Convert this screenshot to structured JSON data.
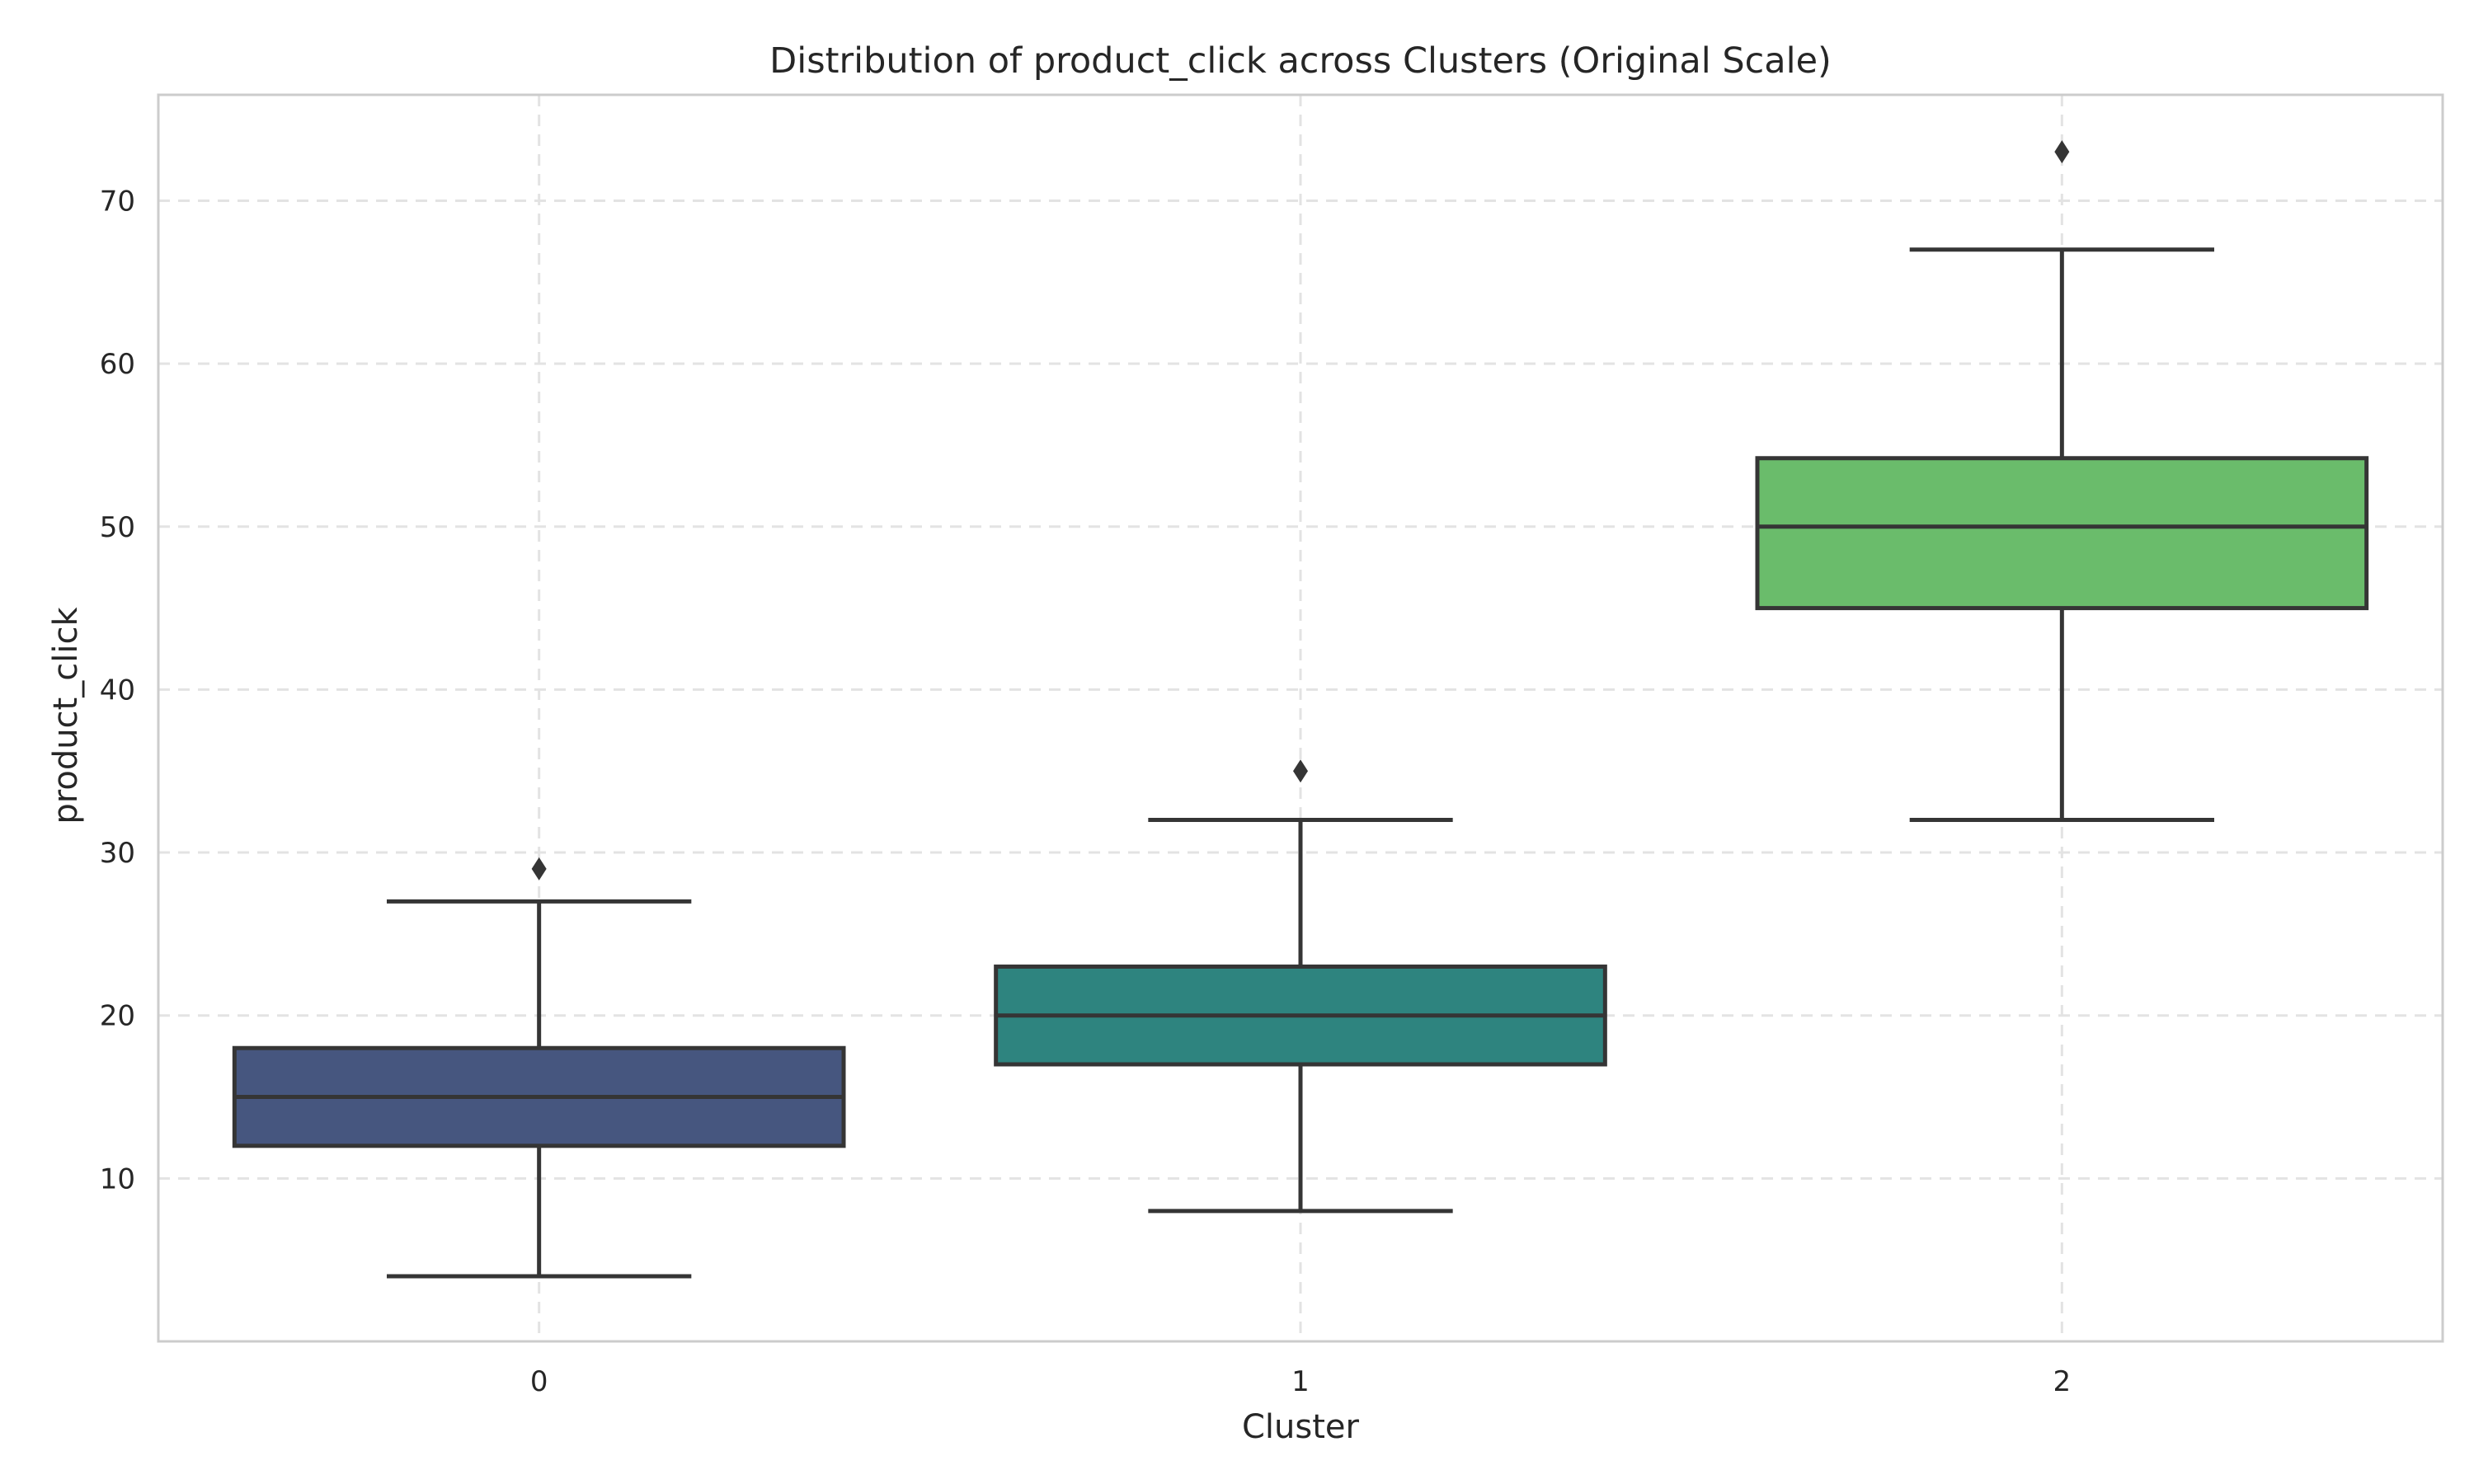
{
  "chart_data": {
    "type": "box",
    "title": "Distribution of product_click across Clusters (Original Scale)",
    "xlabel": "Cluster",
    "ylabel": "product_click",
    "ylim": [
      0,
      76.5
    ],
    "yticks": [
      "10",
      "20",
      "30",
      "40",
      "50",
      "60",
      "70"
    ],
    "grid": true,
    "categories": [
      "0",
      "1",
      "2"
    ],
    "boxes": [
      {
        "category": "0",
        "whisker_low": 4,
        "q1": 12,
        "median": 15,
        "q3": 18,
        "whisker_high": 27,
        "outliers": [
          29
        ],
        "color": "#46567f"
      },
      {
        "category": "1",
        "whisker_low": 8,
        "q1": 17,
        "median": 20,
        "q3": 23,
        "whisker_high": 32,
        "outliers": [
          35
        ],
        "color": "#2e847f"
      },
      {
        "category": "2",
        "whisker_low": 32,
        "q1": 45,
        "median": 50,
        "q3": 54.2,
        "whisker_high": 67,
        "outliers": [
          73
        ],
        "color": "#6abc6b"
      }
    ],
    "colors": {
      "grid": "#e3e3e3",
      "frame": "#cccccc",
      "line": "#353535",
      "text": "#262626"
    }
  }
}
